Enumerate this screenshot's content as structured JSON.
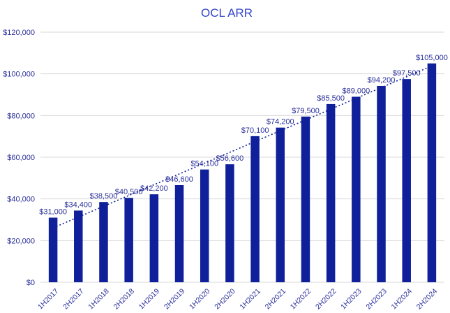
{
  "chart_data": {
    "type": "bar",
    "title": "OCL ARR",
    "xlabel": "",
    "ylabel": "",
    "categories": [
      "1H2017",
      "2H2017",
      "1H2018",
      "2H2018",
      "1H2019",
      "2H2019",
      "1H2020",
      "2H2020",
      "1H2021",
      "2H2021",
      "1H2022",
      "2H2022",
      "1H2023",
      "2H2023",
      "1H2024",
      "2H2024"
    ],
    "values": [
      31000,
      34400,
      38500,
      40500,
      42200,
      46600,
      54100,
      56600,
      70100,
      74200,
      79500,
      85500,
      89000,
      94200,
      97500,
      105000
    ],
    "data_labels": [
      "$31,000",
      "$34,400",
      "$38,500",
      "$40,500",
      "$42,200",
      "$46,600",
      "$54,100",
      "$56,600",
      "$70,100",
      "$74,200",
      "$79,500",
      "$85,500",
      "$89,000",
      "$94,200",
      "$97,500",
      "$105,000"
    ],
    "ylim": [
      0,
      120000
    ],
    "yticks": [
      0,
      20000,
      40000,
      60000,
      80000,
      100000,
      120000
    ],
    "ytick_labels": [
      "$0",
      "$20,000",
      "$40,000",
      "$60,000",
      "$80,000",
      "$100,000",
      "$120,000"
    ],
    "trendline": "linear",
    "grid": true,
    "legend": "none",
    "colors": {
      "bar": "#10209a",
      "text": "#2a2f9a",
      "title": "#3344cc",
      "grid": "#d9d9d9"
    }
  }
}
